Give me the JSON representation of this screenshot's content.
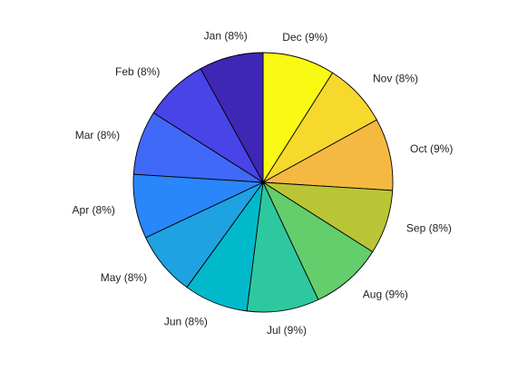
{
  "chart_data": {
    "type": "pie",
    "start": "top",
    "direction": "clockwise",
    "slices": [
      {
        "category": "Dec",
        "label": "Dec (9%)",
        "percent": 9,
        "color": "#f9fa14"
      },
      {
        "category": "Nov",
        "label": "Nov (8%)",
        "percent": 8,
        "color": "#f6d92c"
      },
      {
        "category": "Oct",
        "label": "Oct (9%)",
        "percent": 9,
        "color": "#f5b942"
      },
      {
        "category": "Sep",
        "label": "Sep (8%)",
        "percent": 8,
        "color": "#b9c535"
      },
      {
        "category": "Aug",
        "label": "Aug (9%)",
        "percent": 9,
        "color": "#64cd6c"
      },
      {
        "category": "Jul",
        "label": "Jul (9%)",
        "percent": 9,
        "color": "#2ec8a0"
      },
      {
        "category": "Jun",
        "label": "Jun (8%)",
        "percent": 8,
        "color": "#01b9cb"
      },
      {
        "category": "May",
        "label": "May (8%)",
        "percent": 8,
        "color": "#1fa2e2"
      },
      {
        "category": "Apr",
        "label": "Apr (8%)",
        "percent": 8,
        "color": "#2986fb"
      },
      {
        "category": "Mar",
        "label": "Mar (8%)",
        "percent": 8,
        "color": "#4169f7"
      },
      {
        "category": "Feb",
        "label": "Feb (8%)",
        "percent": 8,
        "color": "#4844e8"
      },
      {
        "category": "Jan",
        "label": "Jan (8%)",
        "percent": 8,
        "color": "#3e27b5"
      }
    ]
  }
}
